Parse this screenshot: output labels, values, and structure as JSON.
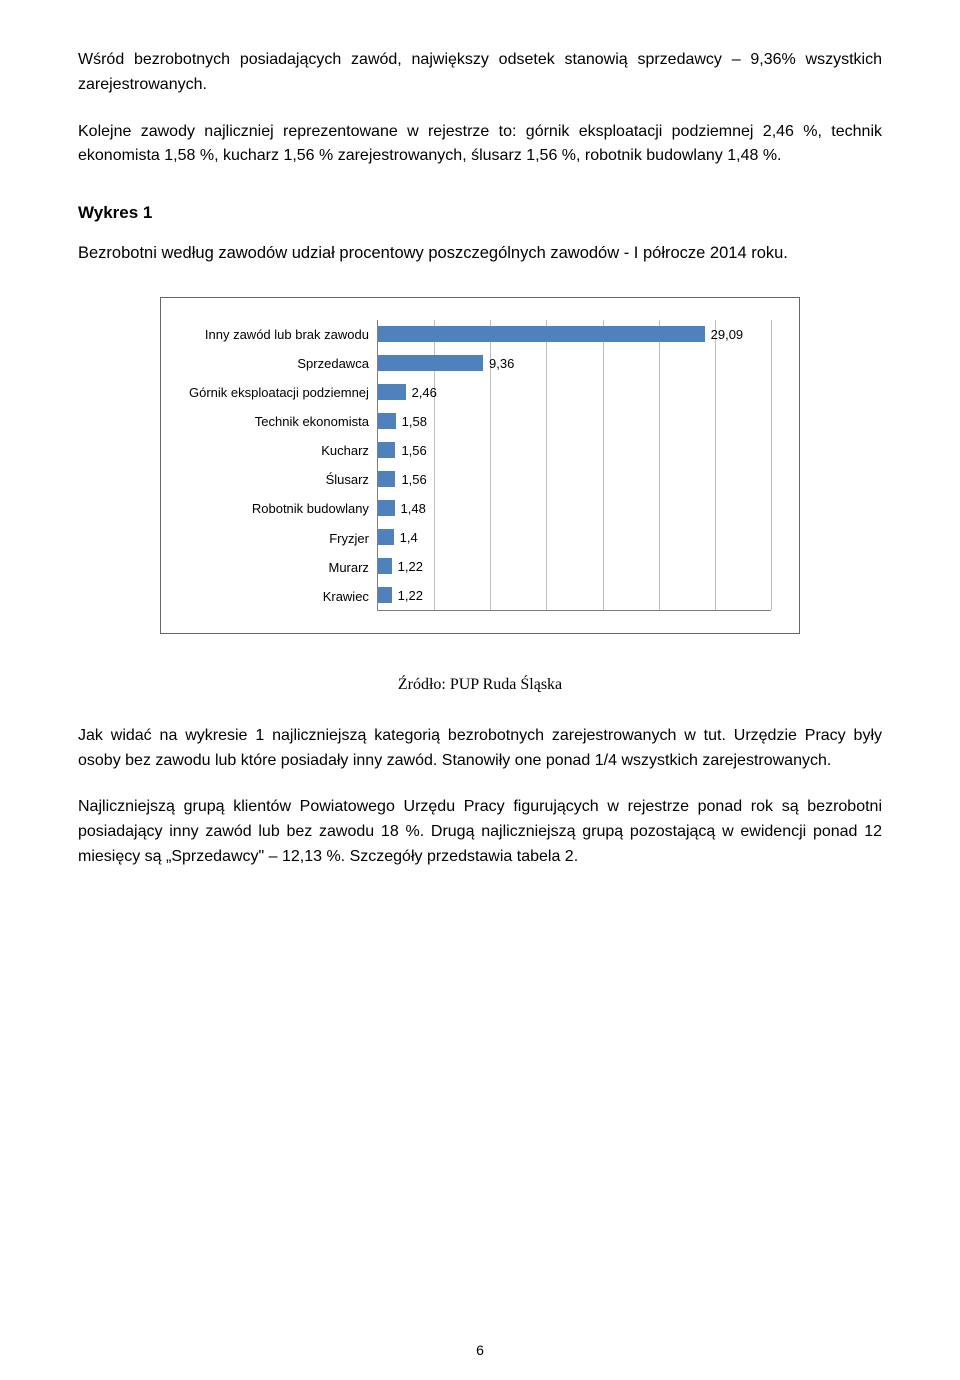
{
  "paragraph1": "Wśród bezrobotnych posiadających zawód, największy odsetek stanowią sprzedawcy – 9,36% wszystkich zarejestrowanych.",
  "paragraph2": "Kolejne zawody najliczniej reprezentowane w rejestrze to: górnik eksploatacji podziemnej 2,46 %, technik ekonomista 1,58 %, kucharz 1,56 % zarejestrowanych, ślusarz 1,56 %, robotnik budowlany 1,48 %.",
  "wykres_label": "Wykres 1",
  "chart_title": "Bezrobotni według zawodów udział procentowy poszczególnych zawodów - I półrocze 2014 roku.",
  "source": "Źródło: PUP Ruda Śląska",
  "paragraph3": "Jak widać na wykresie 1 najliczniejszą kategorią bezrobotnych zarejestrowanych w tut. Urzędzie Pracy były osoby bez zawodu lub które posiadały inny zawód. Stanowiły one ponad 1/4 wszystkich zarejestrowanych.",
  "paragraph4": "Najliczniejszą grupą klientów Powiatowego Urzędu Pracy figurujących w rejestrze ponad rok są bezrobotni posiadający inny zawód lub bez zawodu 18 %. Drugą najliczniejszą grupą pozostającą w ewidencji ponad 12 miesięcy są „Sprzedawcy\" – 12,13 %. Szczegóły przedstawia tabela 2.",
  "page_number": "6",
  "chart": {
    "type": "bar",
    "bar_color": "#4f81bd",
    "grid_color": "#bfbfbf",
    "axis_color": "#7f7f7f",
    "background_color": "#ffffff",
    "label_fontsize": 13,
    "xmax": 35,
    "grid_positions": [
      5,
      10,
      15,
      20,
      25,
      30,
      35
    ],
    "categories": [
      "Inny zawód lub brak zawodu",
      "Sprzedawca",
      "Górnik eksploatacji podziemnej",
      "Technik ekonomista",
      "Kucharz",
      "Ślusarz",
      "Robotnik budowlany",
      "Fryzjer",
      "Murarz",
      "Krawiec"
    ],
    "values": [
      29.09,
      9.36,
      2.46,
      1.58,
      1.56,
      1.56,
      1.48,
      1.4,
      1.22,
      1.22
    ],
    "value_labels": [
      "29,09",
      "9,36",
      "2,46",
      "1,58",
      "1,56",
      "1,56",
      "1,48",
      "1,4",
      "1,22",
      "1,22"
    ]
  }
}
